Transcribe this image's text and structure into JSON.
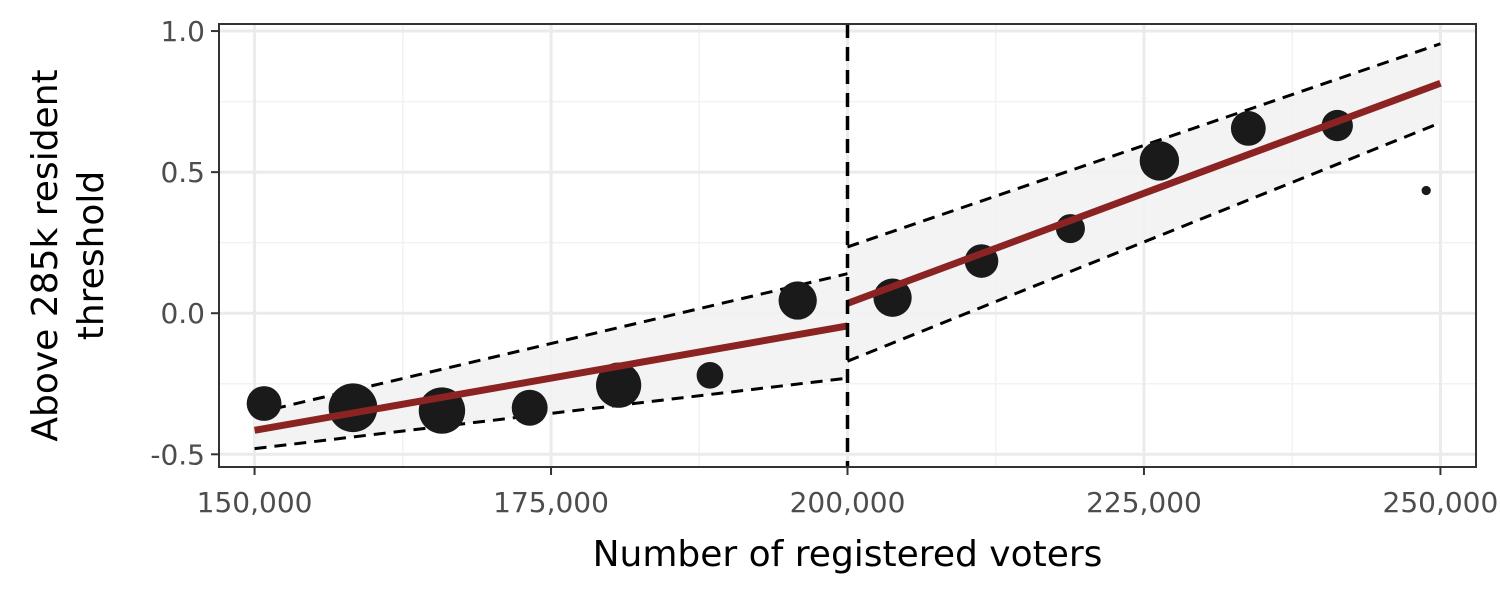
{
  "chart_data": {
    "type": "scatter",
    "title": "",
    "xlabel": "Number of registered voters",
    "ylabel_lines": [
      "Above 285k resident",
      "threshold"
    ],
    "xlim": [
      147000,
      253000
    ],
    "ylim": [
      -0.545,
      1.025
    ],
    "x_ticks": [
      150000,
      175000,
      200000,
      225000,
      250000
    ],
    "x_tick_labels": [
      "150,000",
      "175,000",
      "200,000",
      "225,000",
      "250,000"
    ],
    "x_minor_ticks": [
      162500,
      187500,
      212500,
      237500
    ],
    "y_ticks": [
      -0.5,
      0.0,
      0.5,
      1.0
    ],
    "y_tick_labels": [
      "-0.5",
      "0.0",
      "0.5",
      "1.0"
    ],
    "y_minor_ticks": [
      -0.25,
      0.25,
      0.75
    ],
    "grid": true,
    "cutoff": 200000,
    "colors": {
      "points": "#1a1a1a",
      "fit_line": "#8b2323",
      "band_fill": "#f2f2f2",
      "band_edge": "#000000",
      "cutoff_line": "#000000",
      "panel_border": "#333333"
    },
    "points": [
      {
        "x": 150800,
        "y": -0.32,
        "size": 3.0
      },
      {
        "x": 158300,
        "y": -0.335,
        "size": 4.2
      },
      {
        "x": 165800,
        "y": -0.345,
        "size": 4.0
      },
      {
        "x": 173200,
        "y": -0.335,
        "size": 3.1
      },
      {
        "x": 180700,
        "y": -0.255,
        "size": 3.9
      },
      {
        "x": 188400,
        "y": -0.22,
        "size": 2.3
      },
      {
        "x": 195800,
        "y": 0.045,
        "size": 3.3
      },
      {
        "x": 203800,
        "y": 0.055,
        "size": 3.3
      },
      {
        "x": 211300,
        "y": 0.185,
        "size": 2.9
      },
      {
        "x": 218800,
        "y": 0.3,
        "size": 2.5
      },
      {
        "x": 226300,
        "y": 0.54,
        "size": 3.4
      },
      {
        "x": 233800,
        "y": 0.655,
        "size": 3.0
      },
      {
        "x": 241300,
        "y": 0.665,
        "size": 2.7
      },
      {
        "x": 248800,
        "y": 0.435,
        "size": 0.8
      }
    ],
    "fits": [
      {
        "name": "left",
        "x": [
          150000,
          200000
        ],
        "y": [
          -0.415,
          -0.045
        ],
        "lower": [
          -0.48,
          -0.23
        ],
        "upper": [
          -0.355,
          0.14
        ]
      },
      {
        "name": "right",
        "x": [
          200000,
          250000
        ],
        "y": [
          0.035,
          0.815
        ],
        "lower": [
          -0.17,
          0.675
        ],
        "upper": [
          0.235,
          0.955
        ]
      }
    ]
  }
}
